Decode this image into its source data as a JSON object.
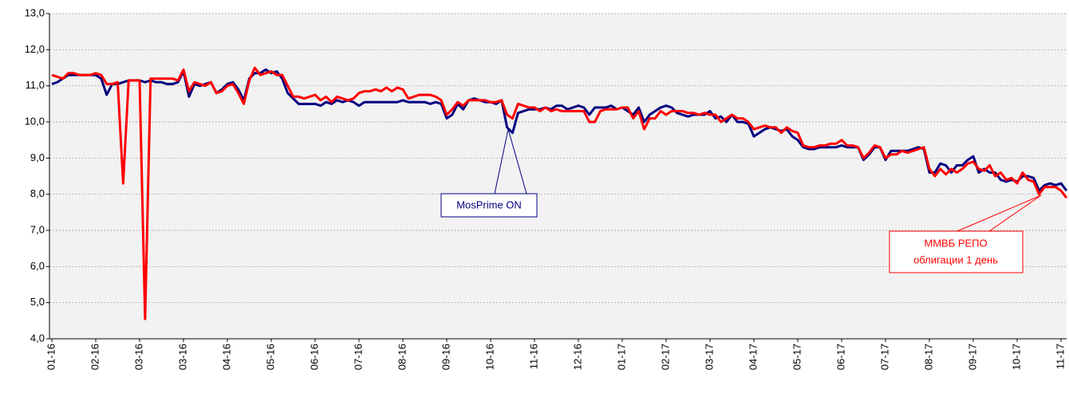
{
  "chart_data": {
    "type": "line",
    "categories": [
      "01-16",
      null,
      null,
      null,
      null,
      null,
      null,
      null,
      "02-16",
      null,
      null,
      null,
      null,
      null,
      null,
      null,
      "03-16",
      null,
      null,
      null,
      null,
      null,
      null,
      null,
      "03-16",
      null,
      null,
      null,
      null,
      null,
      null,
      null,
      "04-16",
      null,
      null,
      null,
      null,
      null,
      null,
      null,
      "05-16",
      null,
      null,
      null,
      null,
      null,
      null,
      null,
      "06-16",
      null,
      null,
      null,
      null,
      null,
      null,
      null,
      "07-16",
      null,
      null,
      null,
      null,
      null,
      null,
      null,
      "08-16",
      null,
      null,
      null,
      null,
      null,
      null,
      null,
      "09-16",
      null,
      null,
      null,
      null,
      null,
      null,
      null,
      "10-16",
      null,
      null,
      null,
      null,
      null,
      null,
      null,
      "11-16",
      null,
      null,
      null,
      null,
      null,
      null,
      null,
      "12-16",
      null,
      null,
      null,
      null,
      null,
      null,
      null,
      "01-17",
      null,
      null,
      null,
      null,
      null,
      null,
      null,
      "02-17",
      null,
      null,
      null,
      null,
      null,
      null,
      null,
      "03-17",
      null,
      null,
      null,
      null,
      null,
      null,
      null,
      "04-17",
      null,
      null,
      null,
      null,
      null,
      null,
      null,
      "05-17",
      null,
      null,
      null,
      null,
      null,
      null,
      null,
      "06-17",
      null,
      null,
      null,
      null,
      null,
      null,
      null,
      "07-17",
      null,
      null,
      null,
      null,
      null,
      null,
      null,
      "08-17",
      null,
      null,
      null,
      null,
      null,
      null,
      null,
      "09-17",
      null,
      null,
      null,
      null,
      null,
      null,
      null,
      "10-17",
      null,
      null,
      null,
      null,
      null,
      null,
      null,
      "11-17",
      null
    ],
    "series": [
      {
        "color": "#00007f",
        "values": [
          11.05,
          11.1,
          11.2,
          11.3,
          11.3,
          11.3,
          11.3,
          11.3,
          11.3,
          11.2,
          10.75,
          11.05,
          11.05,
          11.1,
          11.15,
          11.15,
          11.15,
          11.1,
          11.15,
          11.1,
          11.1,
          11.05,
          11.05,
          11.1,
          11.4,
          10.7,
          11.05,
          11.0,
          11.05,
          11.1,
          10.8,
          10.9,
          11.05,
          11.1,
          10.9,
          10.6,
          11.2,
          11.35,
          11.35,
          11.45,
          11.35,
          11.4,
          11.2,
          10.8,
          10.65,
          10.5,
          10.5,
          10.5,
          10.5,
          10.45,
          10.55,
          10.5,
          10.6,
          10.55,
          10.6,
          10.55,
          10.45,
          10.55,
          10.55,
          10.55,
          10.55,
          10.55,
          10.55,
          10.55,
          10.6,
          10.55,
          10.55,
          10.55,
          10.55,
          10.5,
          10.55,
          10.5,
          10.1,
          10.2,
          10.5,
          10.35,
          10.6,
          10.65,
          10.6,
          10.55,
          10.55,
          10.5,
          10.6,
          9.85,
          9.7,
          10.25,
          10.3,
          10.35,
          10.35,
          10.35,
          10.4,
          10.35,
          10.45,
          10.45,
          10.35,
          10.4,
          10.45,
          10.4,
          10.2,
          10.4,
          10.4,
          10.4,
          10.45,
          10.35,
          10.4,
          10.3,
          10.2,
          10.4,
          10.0,
          10.2,
          10.3,
          10.4,
          10.45,
          10.4,
          10.25,
          10.2,
          10.15,
          10.2,
          10.2,
          10.2,
          10.3,
          10.1,
          10.15,
          10.0,
          10.2,
          10.0,
          10.0,
          9.95,
          9.6,
          9.7,
          9.8,
          9.85,
          9.8,
          9.75,
          9.8,
          9.6,
          9.5,
          9.3,
          9.25,
          9.25,
          9.3,
          9.3,
          9.3,
          9.3,
          9.35,
          9.3,
          9.3,
          9.3,
          8.95,
          9.1,
          9.3,
          9.3,
          8.95,
          9.2,
          9.2,
          9.2,
          9.2,
          9.25,
          9.3,
          9.25,
          8.6,
          8.6,
          8.85,
          8.8,
          8.6,
          8.8,
          8.8,
          8.95,
          9.05,
          8.6,
          8.7,
          8.6,
          8.6,
          8.4,
          8.35,
          8.4,
          8.35,
          8.5,
          8.5,
          8.45,
          8.1,
          8.25,
          8.3,
          8.25,
          8.3,
          8.1
        ]
      },
      {
        "color": "#ff0000",
        "values": [
          11.3,
          11.25,
          11.2,
          11.35,
          11.35,
          11.3,
          11.3,
          11.3,
          11.35,
          11.3,
          11.05,
          11.05,
          11.1,
          8.3,
          11.15,
          11.15,
          11.15,
          4.55,
          11.2,
          11.2,
          11.2,
          11.2,
          11.2,
          11.15,
          11.45,
          10.85,
          11.1,
          11.05,
          11.0,
          11.1,
          10.8,
          10.85,
          11.0,
          11.05,
          10.8,
          10.5,
          11.15,
          11.5,
          11.3,
          11.35,
          11.4,
          11.3,
          11.3,
          11.0,
          10.7,
          10.7,
          10.65,
          10.7,
          10.75,
          10.6,
          10.7,
          10.55,
          10.7,
          10.65,
          10.6,
          10.65,
          10.8,
          10.85,
          10.85,
          10.9,
          10.85,
          10.95,
          10.85,
          10.95,
          10.9,
          10.65,
          10.7,
          10.75,
          10.75,
          10.75,
          10.7,
          10.6,
          10.2,
          10.35,
          10.55,
          10.45,
          10.6,
          10.6,
          10.6,
          10.6,
          10.55,
          10.55,
          10.6,
          10.2,
          10.1,
          10.5,
          10.45,
          10.4,
          10.4,
          10.3,
          10.4,
          10.3,
          10.35,
          10.3,
          10.3,
          10.3,
          10.3,
          10.3,
          10.0,
          10.0,
          10.3,
          10.35,
          10.35,
          10.35,
          10.4,
          10.4,
          10.1,
          10.3,
          9.8,
          10.1,
          10.1,
          10.3,
          10.2,
          10.3,
          10.3,
          10.3,
          10.25,
          10.25,
          10.2,
          10.25,
          10.2,
          10.2,
          10.0,
          10.1,
          10.2,
          10.1,
          10.1,
          10.0,
          9.8,
          9.85,
          9.9,
          9.85,
          9.85,
          9.7,
          9.85,
          9.75,
          9.7,
          9.35,
          9.3,
          9.3,
          9.35,
          9.35,
          9.4,
          9.4,
          9.5,
          9.35,
          9.35,
          9.3,
          9.0,
          9.15,
          9.35,
          9.3,
          9.0,
          9.1,
          9.1,
          9.2,
          9.15,
          9.2,
          9.25,
          9.3,
          8.7,
          8.5,
          8.7,
          8.55,
          8.7,
          8.6,
          8.7,
          8.85,
          8.9,
          8.7,
          8.65,
          8.8,
          8.5,
          8.6,
          8.4,
          8.45,
          8.3,
          8.6,
          8.4,
          8.35,
          8.0,
          8.2,
          8.2,
          8.2,
          8.1,
          7.9
        ]
      }
    ],
    "ylim": [
      4,
      13
    ],
    "yticks": [
      {
        "value": 4,
        "label": "4,0"
      },
      {
        "value": 5,
        "label": "5,0"
      },
      {
        "value": 6,
        "label": "6,0"
      },
      {
        "value": 7,
        "label": "7,0"
      },
      {
        "value": 8,
        "label": "8,0"
      },
      {
        "value": 9,
        "label": "9,0"
      },
      {
        "value": 10,
        "label": "10,0"
      },
      {
        "value": 11,
        "label": "11,0"
      },
      {
        "value": 12,
        "label": "12,0"
      },
      {
        "value": 13,
        "label": "13,0"
      }
    ],
    "grid": true,
    "annotations": [
      {
        "text": "MosPrime ON"
      },
      {
        "text": [
          "ММВБ РЕПО",
          "облигации 1 день"
        ]
      }
    ]
  }
}
